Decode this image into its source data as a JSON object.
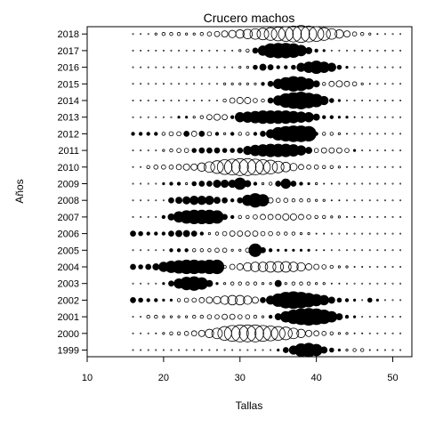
{
  "chart_data": {
    "type": "scatter",
    "title": "Crucero machos",
    "xlabel": "Tallas",
    "ylabel": "Años",
    "xlim": [
      10,
      52.5
    ],
    "x_ticks": [
      "10",
      "20",
      "30",
      "40",
      "50"
    ],
    "x_tick_values": [
      10,
      20,
      30,
      40,
      50
    ],
    "x_start": 16,
    "x_step": 1,
    "x_count": 36,
    "years": [
      "1999",
      "2000",
      "2001",
      "2002",
      "2003",
      "2004",
      "2005",
      "2006",
      "2007",
      "2008",
      "2009",
      "2010",
      "2011",
      "2012",
      "2013",
      "2014",
      "2015",
      "2016",
      "2017",
      "2018"
    ],
    "legend_note": "filled = positive residual, open = negative residual, size = magnitude",
    "rows": {
      "1999": [
        0,
        0,
        0,
        0,
        0,
        0,
        0,
        0,
        0,
        0,
        0,
        0,
        0,
        0,
        0,
        0,
        0,
        0,
        0,
        0.2,
        0.5,
        0.8,
        1.2,
        1.3,
        1.1,
        0.6,
        0.4,
        0.2,
        -0.2,
        -0.3,
        -0.3,
        -0.1,
        -0.1,
        0,
        0,
        0
      ],
      "2000": [
        0,
        0,
        0,
        -0.1,
        -0.2,
        -0.3,
        -0.3,
        -0.4,
        -0.5,
        -0.6,
        -0.8,
        -1.0,
        -1.3,
        -1.5,
        -1.6,
        -1.6,
        -1.6,
        -1.5,
        -1.4,
        -1.3,
        -1.2,
        -1.0,
        -0.8,
        -0.6,
        -0.5,
        -0.4,
        -0.3,
        -0.2,
        -0.2,
        -0.1,
        -0.1,
        0,
        0,
        0,
        0,
        0
      ],
      "2001": [
        0,
        0,
        -0.3,
        -0.3,
        -0.2,
        -0.2,
        -0.2,
        -0.2,
        -0.3,
        -0.3,
        -0.4,
        -0.4,
        -0.5,
        -0.5,
        -0.4,
        -0.4,
        -0.3,
        -0.2,
        0.3,
        0.6,
        1.0,
        1.3,
        1.5,
        1.6,
        1.5,
        1.3,
        1.0,
        0.6,
        0.3,
        0.2,
        0,
        0,
        0,
        0,
        0,
        0
      ],
      "2002": [
        0.5,
        0.4,
        0.3,
        0.3,
        0.2,
        0.2,
        -0.3,
        -0.4,
        -0.4,
        -0.5,
        -0.6,
        -0.7,
        -0.8,
        -0.9,
        -0.9,
        -0.8,
        -0.6,
        0.5,
        0.8,
        1.2,
        1.5,
        1.6,
        1.5,
        1.3,
        1.1,
        0.9,
        0.6,
        0.4,
        0.3,
        0.2,
        0,
        0.4,
        0.2,
        0,
        0,
        0
      ],
      "2003": [
        0,
        0,
        0,
        0,
        0.2,
        0.5,
        0.9,
        1.2,
        1.3,
        1.1,
        0.6,
        0.2,
        -0.2,
        -0.3,
        -0.3,
        -0.3,
        -0.3,
        -0.2,
        -0.2,
        0.6,
        -0.2,
        -0.3,
        -0.3,
        -0.3,
        -0.2,
        -0.2,
        -0.1,
        -0.1,
        0,
        0,
        0,
        0,
        0,
        0,
        0,
        0
      ],
      "2004": [
        0.5,
        0.4,
        0.5,
        0.6,
        0.9,
        1.1,
        1.2,
        1.3,
        1.3,
        1.2,
        1.3,
        1.3,
        -0.3,
        -0.5,
        -0.6,
        -0.8,
        -0.9,
        -0.9,
        -1.0,
        -1.0,
        -1.0,
        -0.9,
        -0.8,
        -0.6,
        -0.5,
        -0.4,
        -0.3,
        -0.2,
        -0.2,
        -0.1,
        -0.1,
        0,
        0,
        0,
        0,
        0
      ],
      "2005": [
        0,
        0,
        0,
        0,
        0,
        0.3,
        0.3,
        0.3,
        -0.3,
        -0.3,
        -0.3,
        -0.4,
        -0.4,
        -0.2,
        -0.2,
        -0.4,
        1.2,
        0.5,
        0.3,
        0.2,
        0.2,
        0.2,
        0.2,
        0.2,
        0.1,
        0.1,
        0,
        0,
        0,
        0,
        0,
        0,
        0,
        0,
        0,
        0
      ],
      "2006": [
        0.5,
        0.4,
        0.3,
        0.3,
        0.3,
        0.5,
        0.6,
        0.6,
        0.5,
        0.3,
        -0.2,
        -0.3,
        -0.4,
        -0.5,
        -0.5,
        -0.5,
        -0.5,
        -0.4,
        -0.4,
        -0.3,
        -0.3,
        -0.3,
        -0.2,
        -0.2,
        -0.1,
        -0.1,
        0,
        0,
        0,
        0,
        0,
        0,
        0,
        0,
        0,
        0
      ],
      "2007": [
        0,
        0,
        0,
        0,
        0.3,
        0.6,
        1.0,
        1.2,
        1.3,
        1.3,
        1.3,
        1.2,
        0.5,
        0.3,
        -0.3,
        -0.3,
        -0.4,
        -0.5,
        -0.5,
        -0.5,
        -0.6,
        -0.6,
        -0.5,
        -0.4,
        -0.3,
        -0.3,
        -0.2,
        -0.2,
        -0.1,
        -0.1,
        0,
        0,
        0,
        0,
        0,
        0
      ],
      "2008": [
        0,
        0,
        0,
        0,
        0,
        0.5,
        0.6,
        0.7,
        0.8,
        0.8,
        0.8,
        0.6,
        0.5,
        0.3,
        0.5,
        1.0,
        1.3,
        1.1,
        -0.5,
        -0.4,
        -0.4,
        -0.3,
        -0.3,
        -0.3,
        -0.2,
        -0.2,
        -0.1,
        -0.1,
        0,
        0,
        0,
        0,
        0,
        0,
        0,
        0
      ],
      "2009": [
        0,
        0,
        0,
        0,
        0.2,
        0.3,
        0.3,
        -0.2,
        0.4,
        0.5,
        0.5,
        0.7,
        0.7,
        0.7,
        1.1,
        0.6,
        0.3,
        -0.2,
        -0.3,
        0.5,
        0.9,
        0.5,
        0.3,
        0.2,
        -0.2,
        -0.1,
        -0.1,
        0,
        0,
        0,
        0,
        0,
        0,
        0,
        0,
        0
      ],
      "2010": [
        0,
        0,
        -0.3,
        -0.4,
        -0.4,
        -0.4,
        -0.5,
        -0.6,
        -0.6,
        -0.8,
        -1.0,
        -1.2,
        -1.4,
        -1.5,
        -1.6,
        -1.6,
        -1.5,
        -1.4,
        -1.3,
        -1.1,
        -0.9,
        -0.7,
        -0.5,
        -0.4,
        -0.4,
        -0.3,
        -0.3,
        -0.2,
        -0.1,
        0,
        0,
        0,
        0,
        0,
        0,
        0
      ],
      "2011": [
        0,
        0,
        0,
        0,
        -0.2,
        -0.3,
        -0.4,
        -0.4,
        0.4,
        0.5,
        0.5,
        0.5,
        0.4,
        0.4,
        0.5,
        0.8,
        1.0,
        1.1,
        1.2,
        1.2,
        1.2,
        1.1,
        0.9,
        0.6,
        -0.4,
        -0.5,
        -0.5,
        -0.5,
        -0.4,
        0.2,
        0,
        0,
        0,
        0,
        0,
        0
      ],
      "2012": [
        0.3,
        0.3,
        0.3,
        0.3,
        -0.3,
        -0.4,
        -0.4,
        0.5,
        -0.5,
        0.5,
        -0.4,
        0.3,
        -0.2,
        0.3,
        -0.3,
        -0.3,
        0.3,
        0.5,
        0.8,
        1.2,
        1.4,
        1.5,
        1.5,
        1.4,
        0.3,
        -0.3,
        -0.3,
        -0.2,
        -0.1,
        0,
        0,
        0,
        0,
        0,
        0,
        0
      ],
      "2013": [
        0,
        0,
        0,
        0,
        0,
        0,
        0.2,
        0.2,
        -0.2,
        -0.3,
        -0.5,
        -0.6,
        -0.5,
        0.3,
        0.9,
        1.0,
        1.1,
        1.2,
        1.2,
        1.2,
        1.2,
        1.1,
        1.0,
        0.9,
        0.6,
        0.3,
        0.3,
        0.2,
        0.2,
        0.1,
        0,
        0,
        0,
        0,
        0,
        0
      ],
      "2014": [
        0,
        0,
        0,
        0,
        0,
        0,
        0,
        0,
        0,
        0,
        0,
        0,
        -0.3,
        -0.5,
        -0.6,
        -0.6,
        -0.4,
        -0.3,
        0.5,
        0.9,
        1.3,
        1.5,
        1.6,
        1.4,
        1.2,
        0.8,
        0.4,
        0.2,
        0,
        0,
        0,
        0,
        0,
        0,
        0,
        0
      ],
      "2015": [
        0,
        0,
        0,
        0,
        0,
        0,
        0,
        0,
        0,
        0,
        0,
        0,
        -0.2,
        -0.2,
        -0.2,
        -0.2,
        -0.2,
        0.3,
        0.5,
        0.9,
        1.2,
        1.4,
        1.3,
        1.0,
        0.6,
        -0.3,
        -0.5,
        -0.6,
        -0.5,
        -0.4,
        -0.2,
        -0.1,
        0,
        0,
        0,
        0
      ],
      "2016": [
        0,
        0,
        0,
        0,
        0,
        0,
        0,
        0,
        0,
        0,
        0,
        0,
        0,
        0,
        -0.2,
        -0.2,
        0.4,
        0.6,
        0.5,
        0.3,
        0.3,
        0.4,
        0.8,
        1.0,
        1.2,
        1.0,
        0.8,
        0.4,
        0.2,
        0,
        0,
        0,
        0,
        0,
        0,
        0
      ],
      "2017": [
        0,
        0,
        0,
        0,
        0,
        0,
        0,
        0,
        0,
        0,
        0,
        0,
        0,
        0,
        -0.2,
        -0.3,
        0.5,
        0.9,
        1.3,
        1.4,
        1.4,
        1.3,
        1.0,
        0.6,
        0.3,
        0.2,
        0,
        0,
        0,
        0,
        0,
        0,
        0,
        0,
        0,
        0
      ],
      "2018": [
        0,
        0,
        0,
        -0.2,
        -0.3,
        -0.3,
        -0.3,
        -0.2,
        -0.2,
        -0.3,
        -0.4,
        -0.5,
        -0.6,
        -0.7,
        -0.8,
        -0.9,
        -1.0,
        -1.1,
        -1.2,
        -1.3,
        -1.4,
        -1.5,
        -1.6,
        -1.5,
        -1.4,
        -1.2,
        -1.0,
        -0.8,
        -0.6,
        -0.4,
        -0.3,
        -0.2,
        -0.1,
        0,
        0,
        0
      ]
    }
  }
}
